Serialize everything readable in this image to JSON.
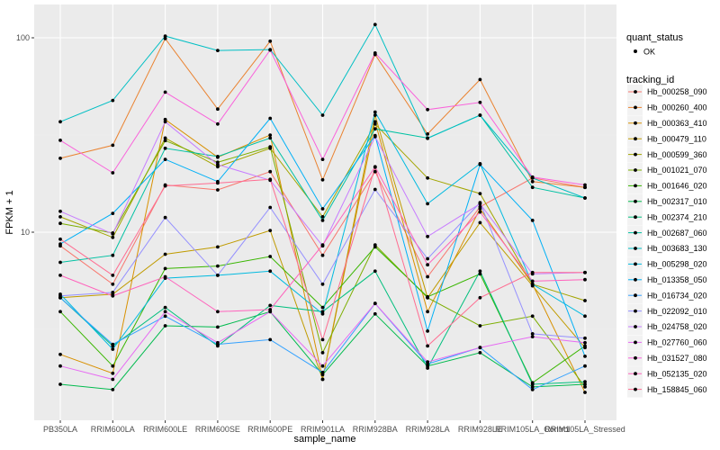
{
  "chart_data": {
    "type": "line",
    "xlabel": "sample_name",
    "ylabel": "FPKM + 1",
    "y_scale": "log",
    "y_ticks": [
      {
        "value": 10,
        "label": "10"
      },
      {
        "value": 100,
        "label": "100"
      }
    ],
    "categories": [
      "PB350LA",
      "RRIM600LA",
      "RRIM600LE",
      "RRIM600SE",
      "RRIM600PE",
      "RRIM901LA",
      "RRIM928BA",
      "RRIM928LA",
      "RRIM928LE",
      "RRIM105LA_Control",
      "RRIM105LA_Stressed"
    ],
    "points_legend": {
      "title": "quant_status",
      "label": "OK"
    },
    "series_legend_title": "tracking_id",
    "series": [
      {
        "name": "Hb_000258_090",
        "color": "#F8766D",
        "values": [
          8.5,
          5.4,
          17.5,
          16.5,
          20.5,
          7.6,
          20.5,
          5.9,
          13.5,
          19,
          17
        ]
      },
      {
        "name": "Hb_000260_400",
        "color": "#EA8331",
        "values": [
          24,
          28,
          99,
          43,
          96,
          18.6,
          82,
          32,
          61,
          18.2,
          17
        ]
      },
      {
        "name": "Hb_000363_410",
        "color": "#D89000",
        "values": [
          2.35,
          1.88,
          38,
          24.3,
          31.6,
          1.75,
          37,
          3.9,
          13.2,
          5.4,
          1.5
        ]
      },
      {
        "name": "Hb_000479_110",
        "color": "#C09B00",
        "values": [
          4.6,
          4.8,
          7.7,
          8.4,
          10.2,
          1.75,
          40,
          4.6,
          11.2,
          5.3,
          2.55
        ]
      },
      {
        "name": "Hb_000599_360",
        "color": "#A3A500",
        "values": [
          12,
          9.4,
          30.5,
          21.7,
          27,
          12,
          36,
          19,
          15.8,
          5.4,
          4.45
        ]
      },
      {
        "name": "Hb_001021_070",
        "color": "#7CAE00",
        "values": [
          11.1,
          9.9,
          29.6,
          22.9,
          27.5,
          2.4,
          8.6,
          4.6,
          3.3,
          3.7,
          1.6
        ]
      },
      {
        "name": "Hb_001646_020",
        "color": "#39B600",
        "values": [
          3.9,
          2.05,
          6.5,
          6.7,
          7.5,
          4.1,
          8.4,
          4.65,
          6.1,
          1.68,
          2.6
        ]
      },
      {
        "name": "Hb_002317_010",
        "color": "#00BB4E",
        "values": [
          1.65,
          1.55,
          3.3,
          3.25,
          3.9,
          1.85,
          3.8,
          2.05,
          2.4,
          1.6,
          1.65
        ]
      },
      {
        "name": "Hb_002374_210",
        "color": "#00BF7D",
        "values": [
          4.6,
          2.6,
          4.1,
          2.6,
          4.2,
          3.9,
          6.3,
          2.0,
          6.3,
          1.65,
          1.7
        ]
      },
      {
        "name": "Hb_002687_060",
        "color": "#00C1A3",
        "values": [
          7.0,
          7.6,
          27,
          24.5,
          30.5,
          11.5,
          34,
          30.5,
          40,
          17,
          15
        ]
      },
      {
        "name": "Hb_003683_130",
        "color": "#00BFC4",
        "values": [
          37,
          47.6,
          102,
          86,
          87,
          40,
          117,
          30.4,
          40,
          19,
          15
        ]
      },
      {
        "name": "Hb_005298_020",
        "color": "#00BAE0",
        "values": [
          4.8,
          2.5,
          5.8,
          6.0,
          6.3,
          3.8,
          41.5,
          14,
          22.5,
          5.4,
          3.7
        ]
      },
      {
        "name": "Hb_013358_050",
        "color": "#00B0F6",
        "values": [
          8.7,
          12.5,
          23.7,
          18.2,
          38.5,
          13.2,
          31.4,
          3.1,
          22.3,
          11.5,
          2.3
        ]
      },
      {
        "name": "Hb_016734_020",
        "color": "#35A2FF",
        "values": [
          4.6,
          2.65,
          3.7,
          2.65,
          2.8,
          1.9,
          4.3,
          2.1,
          2.55,
          1.55,
          2.05
        ]
      },
      {
        "name": "Hb_022092_010",
        "color": "#9590FF",
        "values": [
          4.7,
          4.9,
          11.9,
          6.0,
          13.4,
          5.4,
          16.6,
          7.3,
          14.2,
          3.0,
          2.85
        ]
      },
      {
        "name": "Hb_024758_020",
        "color": "#C77CFF",
        "values": [
          12.8,
          9.8,
          37,
          22.3,
          18.5,
          8.5,
          31,
          9.5,
          14,
          6.1,
          6.2
        ]
      },
      {
        "name": "Hb_027760_060",
        "color": "#E76BF3",
        "values": [
          2.05,
          1.75,
          3.9,
          2.7,
          3.9,
          2.05,
          4.3,
          2.15,
          2.55,
          2.9,
          2.7
        ]
      },
      {
        "name": "Hb_031527_080",
        "color": "#FA62DB",
        "values": [
          29.7,
          20.2,
          52.5,
          36,
          86.5,
          23.7,
          83.5,
          42.7,
          46.5,
          19.2,
          17.5
        ]
      },
      {
        "name": "Hb_052135_020",
        "color": "#FF62BC",
        "values": [
          6.0,
          4.7,
          5.9,
          3.9,
          4.0,
          8.6,
          21.7,
          6.8,
          12.7,
          5.6,
          5.7
        ]
      },
      {
        "name": "Hb_158845_060",
        "color": "#FF6C91",
        "values": [
          9.2,
          6.0,
          17.3,
          17.9,
          18.7,
          2.8,
          21.6,
          2.6,
          4.6,
          6.2,
          6.2
        ]
      }
    ]
  }
}
